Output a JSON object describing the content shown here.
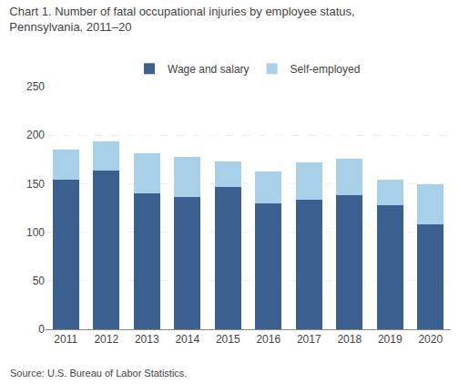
{
  "chart_data": {
    "type": "bar",
    "title": "Chart 1. Number of fatal occupational injuries by employee status,",
    "subtitle": "Pennsylvania, 2011–20",
    "categories": [
      "2011",
      "2012",
      "2013",
      "2014",
      "2015",
      "2016",
      "2017",
      "2018",
      "2019",
      "2020"
    ],
    "series": [
      {
        "name": "Wage and salary",
        "color": "#3A6090",
        "values": [
          154,
          164,
          140,
          136,
          147,
          130,
          133,
          138,
          128,
          108
        ]
      },
      {
        "name": "Self-employed",
        "color": "#A8D0E8",
        "values": [
          31,
          30,
          41,
          42,
          26,
          33,
          39,
          38,
          26,
          41
        ]
      }
    ],
    "stacked": true,
    "ylim": [
      0,
      250
    ],
    "yticks": [
      0,
      50,
      100,
      150,
      200,
      250
    ],
    "grid": true,
    "legend": "top",
    "annotations": [
      "Source: U.S. Bureau of Labor Statistics."
    ]
  }
}
